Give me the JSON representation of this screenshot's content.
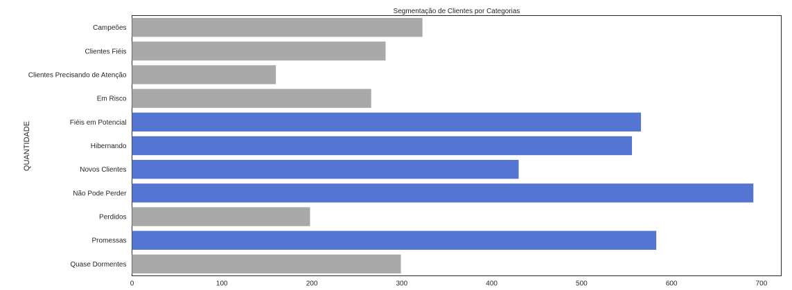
{
  "chart_data": {
    "type": "bar",
    "orientation": "horizontal",
    "title": "Segmentação de Clientes por Categorias",
    "ylabel": "QUANTIDADE",
    "xlabel": "",
    "categories": [
      "Campeões",
      "Clientes Fiéis",
      "Clientes Precisando de Atenção",
      "Em Risco",
      "Fiéis em Potencial",
      "Hibernando",
      "Novos Clientes",
      "Não Pode Perder",
      "Perdidos",
      "Promessas",
      "Quase Dormentes"
    ],
    "values": [
      323,
      282,
      160,
      266,
      566,
      556,
      430,
      691,
      198,
      583,
      299
    ],
    "highlighted": [
      false,
      false,
      false,
      false,
      true,
      true,
      true,
      true,
      false,
      true,
      false
    ],
    "colors": {
      "default": "#a9a9a9",
      "highlight": "#5575d2"
    },
    "xlim": [
      0,
      722
    ],
    "xticks": [
      0,
      100,
      200,
      300,
      400,
      500,
      600,
      700
    ],
    "grid": false,
    "legend": "none"
  }
}
